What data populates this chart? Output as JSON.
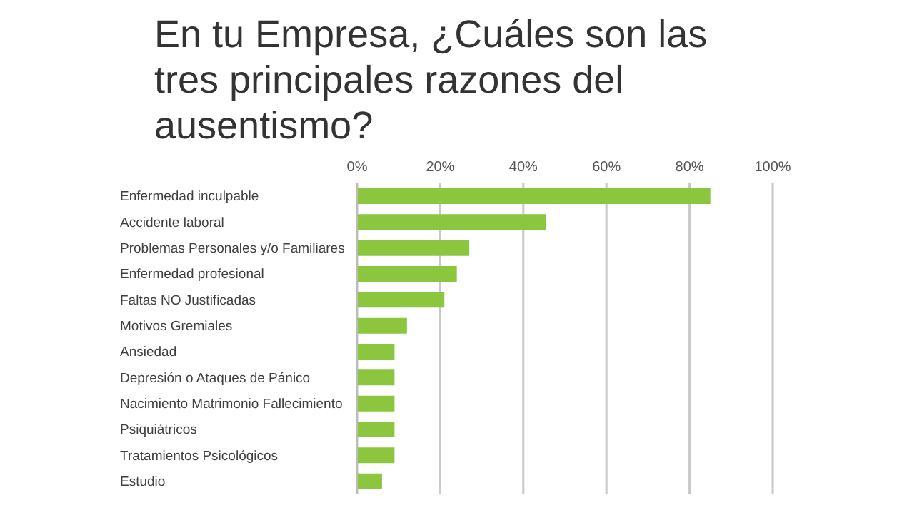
{
  "chart_data": {
    "type": "bar",
    "orientation": "horizontal",
    "title": "En tu Empresa, ¿Cuáles son las tres principales razones del ausentismo?",
    "categories": [
      "Enfermedad inculpable",
      "Accidente laboral",
      "Problemas Personales y/o Familiares",
      "Enfermedad profesional",
      "Faltas NO Justificadas",
      "Motivos Gremiales",
      "Ansiedad",
      "Depresión o Ataques de Pánico",
      "Nacimiento Matrimonio Fallecimiento",
      "Psiquiátricos",
      "Tratamientos Psicológicos",
      "Estudio"
    ],
    "values": [
      85,
      45.5,
      27,
      24,
      21,
      12,
      9,
      9,
      9,
      9,
      9,
      6
    ],
    "color": "#8cc63f",
    "xlim": [
      0,
      100
    ],
    "xticks": [
      {
        "value": 0,
        "label": "0%"
      },
      {
        "value": 20,
        "label": "20%"
      },
      {
        "value": 40,
        "label": "40%"
      },
      {
        "value": 60,
        "label": "60%"
      },
      {
        "value": 80,
        "label": "80%"
      },
      {
        "value": 100,
        "label": "100%"
      }
    ],
    "grid": "x",
    "legend": false
  }
}
